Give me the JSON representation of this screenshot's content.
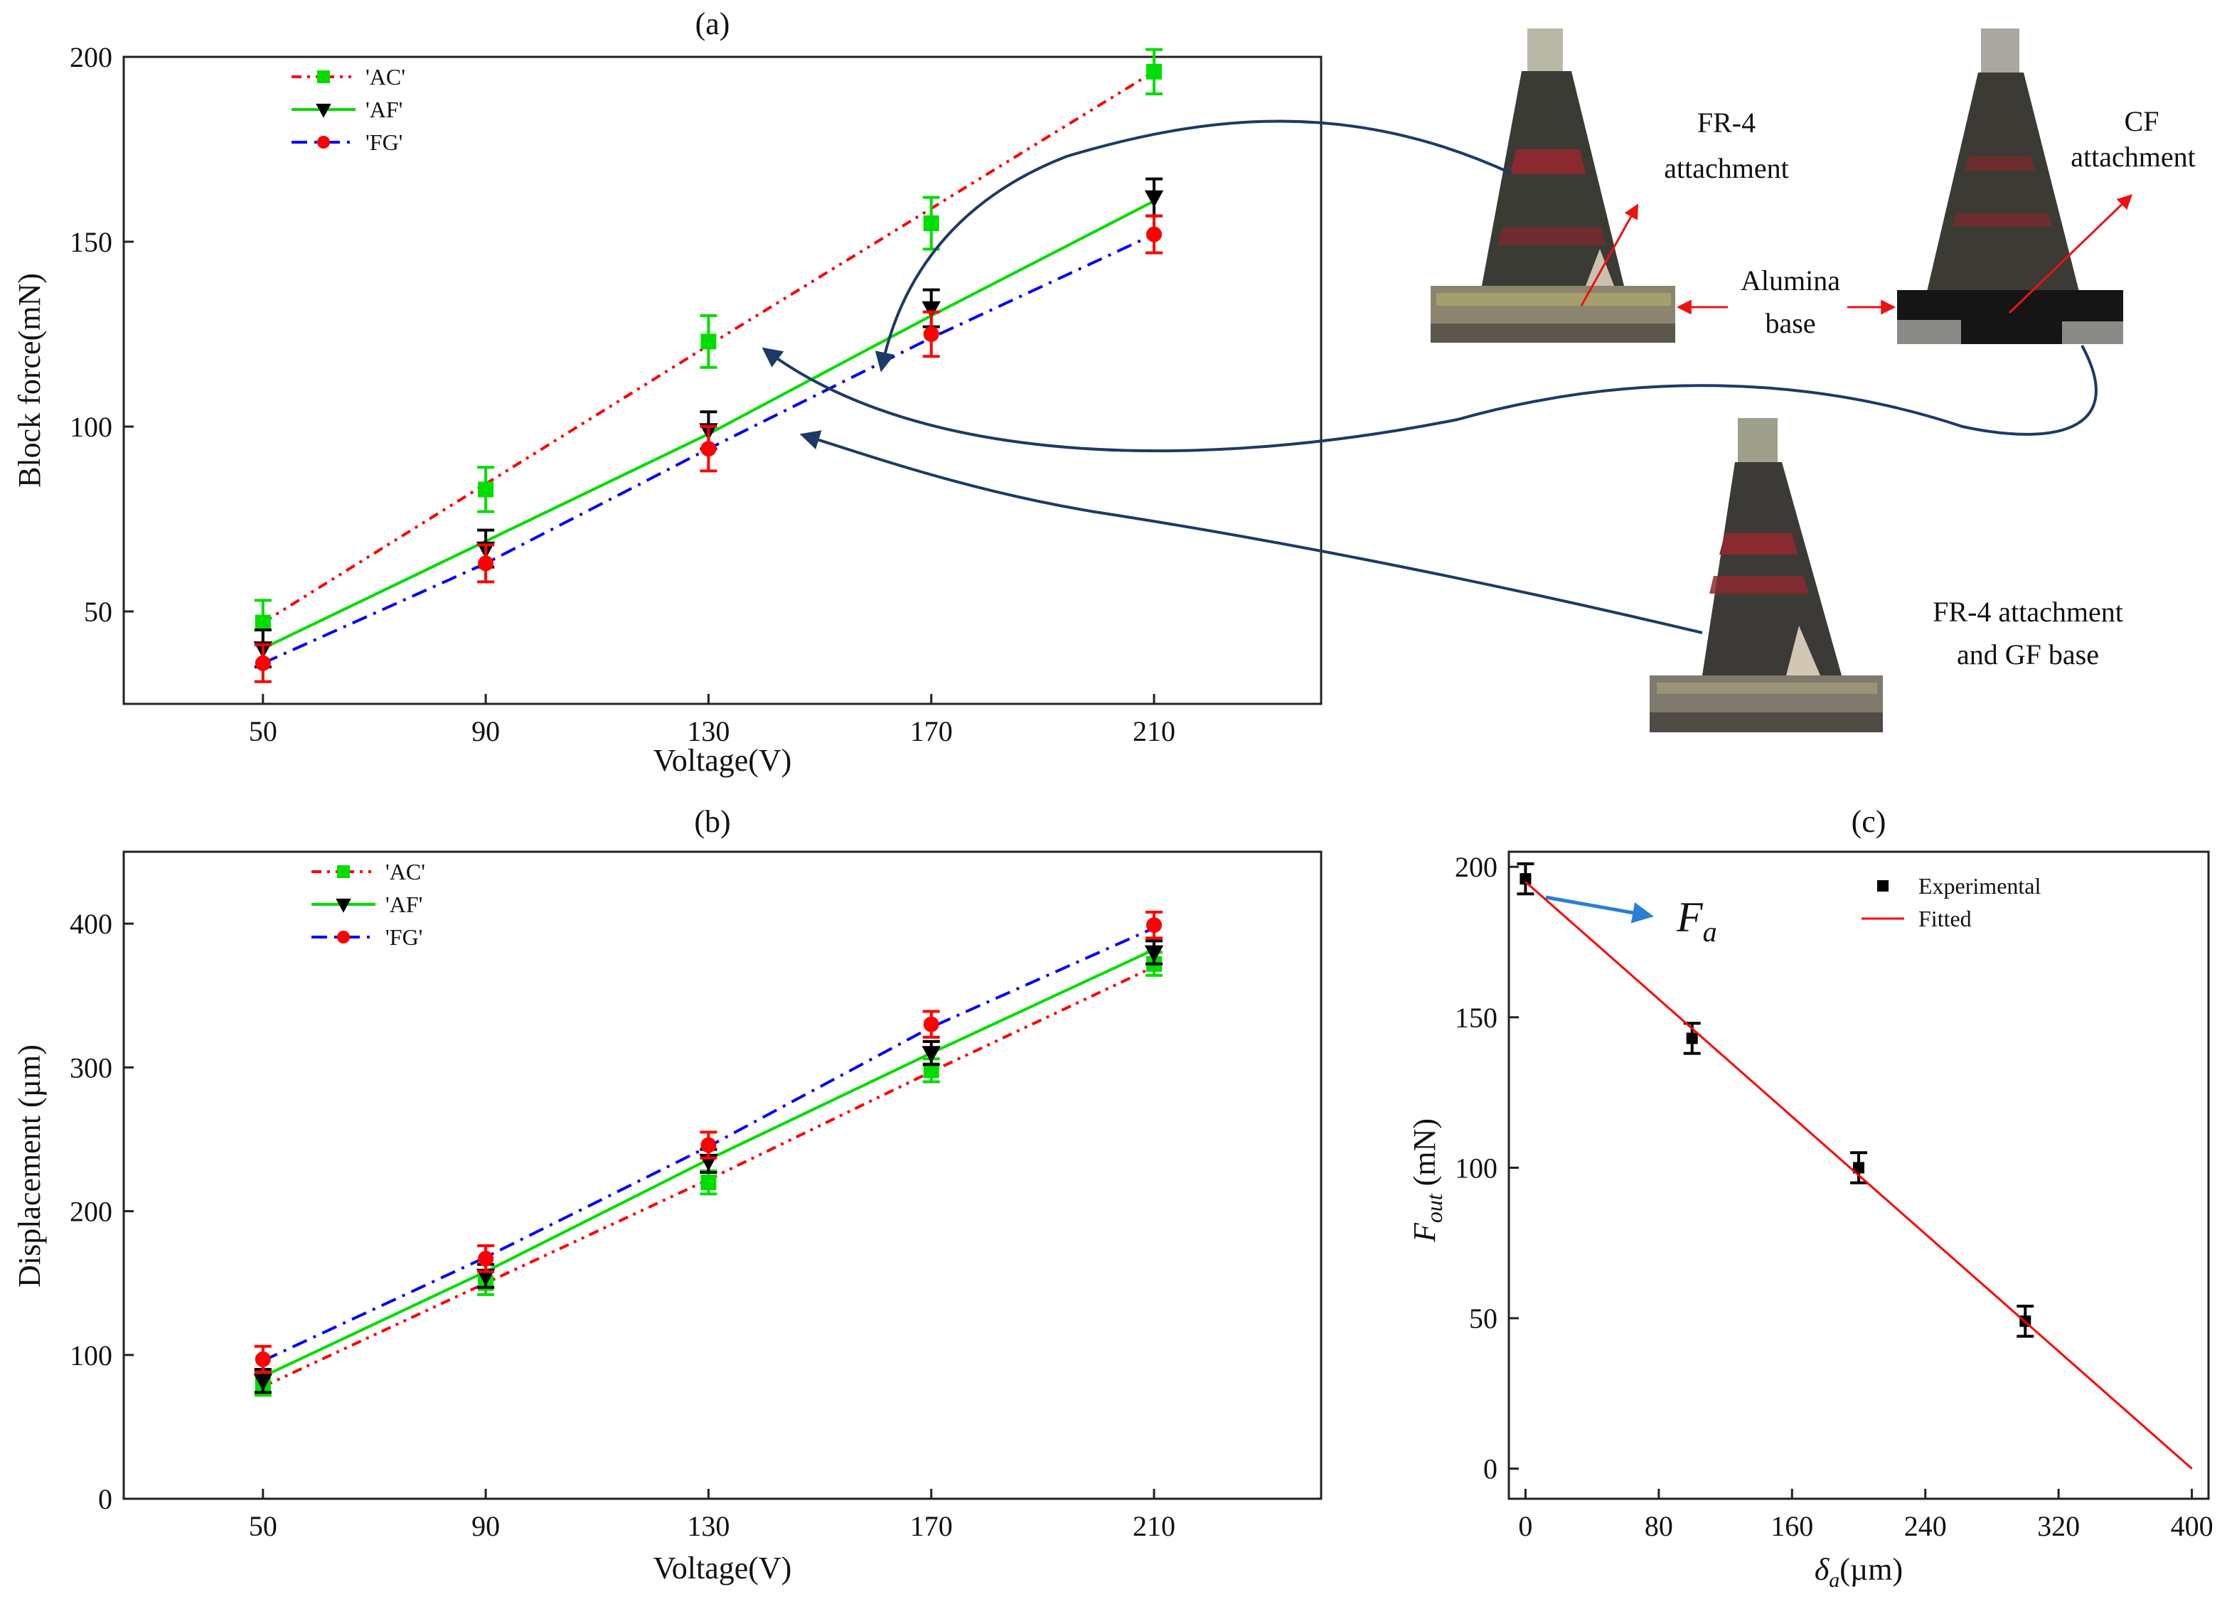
{
  "chart_data": [
    {
      "panel": "(a)",
      "type": "line",
      "xlabel": "Voltage(V)",
      "ylabel": "Block force(mN)",
      "x": [
        50,
        90,
        130,
        170,
        210
      ],
      "xticks": [
        "50",
        "90",
        "130",
        "170",
        "210"
      ],
      "yticks": [
        "50",
        "100",
        "150",
        "200"
      ],
      "xlim": [
        25,
        240
      ],
      "ylim": [
        25,
        200
      ],
      "legend_position": "top-left",
      "series": [
        {
          "name": "'AC'",
          "color": "#00dd00",
          "line_color": "#ff0000",
          "line_style": "dash-dot-dot",
          "marker": "square",
          "values": [
            47,
            83,
            123,
            155,
            196
          ],
          "errors": [
            6,
            6,
            7,
            7,
            6
          ],
          "fit": [
            47,
            84.5,
            122,
            159,
            196
          ]
        },
        {
          "name": "'AF'",
          "color": "#000000",
          "line_color": "#00dd00",
          "line_style": "solid",
          "marker": "triangle-down",
          "values": [
            40,
            67,
            99,
            132,
            162
          ],
          "errors": [
            5,
            5,
            5,
            5,
            5
          ],
          "fit": [
            40,
            69,
            98,
            130,
            161
          ]
        },
        {
          "name": "'FG'",
          "color": "#ff0000",
          "line_color": "#0000ff",
          "line_style": "dash-dot",
          "marker": "circle",
          "values": [
            36,
            63,
            94,
            125,
            152
          ],
          "errors": [
            5,
            5,
            6,
            6,
            5
          ],
          "fit": [
            36,
            63,
            94,
            124,
            152
          ]
        }
      ]
    },
    {
      "panel": "(b)",
      "type": "line",
      "xlabel": "Voltage(V)",
      "ylabel": "Displacement (µm)",
      "x": [
        50,
        90,
        130,
        170,
        210
      ],
      "xticks": [
        "50",
        "90",
        "130",
        "170",
        "210"
      ],
      "yticks": [
        "0",
        "100",
        "200",
        "300",
        "400"
      ],
      "xlim": [
        25,
        240
      ],
      "ylim": [
        0,
        450
      ],
      "legend_position": "top-left",
      "series": [
        {
          "name": "'AC'",
          "color": "#00dd00",
          "line_color": "#ff0000",
          "line_style": "dash-dot-dot",
          "marker": "square",
          "values": [
            80,
            150,
            220,
            298,
            372
          ],
          "errors": [
            8,
            8,
            8,
            8,
            8
          ],
          "fit": [
            78,
            150,
            222,
            297,
            370
          ]
        },
        {
          "name": "'AF'",
          "color": "#000000",
          "line_color": "#00dd00",
          "line_style": "solid",
          "marker": "triangle-down",
          "values": [
            82,
            155,
            235,
            310,
            380
          ],
          "errors": [
            8,
            8,
            8,
            8,
            8
          ],
          "fit": [
            85,
            158,
            236,
            310,
            382
          ]
        },
        {
          "name": "'FG'",
          "color": "#ff0000",
          "line_color": "#0000ff",
          "line_style": "dash-dot",
          "marker": "circle",
          "values": [
            97,
            167,
            246,
            330,
            399
          ],
          "errors": [
            9,
            9,
            9,
            9,
            9
          ],
          "fit": [
            96,
            168,
            245,
            328,
            397
          ]
        }
      ]
    },
    {
      "panel": "(c)",
      "type": "scatter",
      "xlabel": "δa(µm)",
      "ylabel": "Fout (mN)",
      "xticks": [
        "0",
        "80",
        "160",
        "240",
        "320",
        "400"
      ],
      "yticks": [
        "0",
        "50",
        "100",
        "150",
        "200"
      ],
      "xlim": [
        -10,
        410
      ],
      "ylim": [
        -10,
        205
      ],
      "legend_position": "top-right",
      "annotation": "Fa",
      "series": [
        {
          "name": "Experimental",
          "color": "#000000",
          "marker": "square",
          "x": [
            0,
            100,
            200,
            300
          ],
          "values": [
            196,
            143,
            100,
            49
          ],
          "errors": [
            5,
            5,
            5,
            5
          ]
        },
        {
          "name": "Fitted",
          "color": "#ff0000",
          "type": "line",
          "x": [
            0,
            400
          ],
          "values": [
            195,
            0
          ]
        }
      ]
    }
  ],
  "photos": {
    "photo1": {
      "attachment_label": [
        "FR-4",
        "attachment"
      ]
    },
    "photo2": {
      "attachment_label": [
        "CF",
        "attachment"
      ]
    },
    "photo3": {
      "attachment_label": [
        "FR-4 attachment",
        "and GF base"
      ]
    },
    "base_label": [
      "Alumina",
      "base"
    ]
  }
}
